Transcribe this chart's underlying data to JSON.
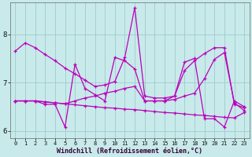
{
  "xlabel": "Windchill (Refroidissement éolien,°C)",
  "xlim": [
    -0.5,
    23.5
  ],
  "ylim": [
    5.85,
    8.65
  ],
  "yticks": [
    6,
    7,
    8
  ],
  "xticks": [
    0,
    1,
    2,
    3,
    4,
    5,
    6,
    7,
    8,
    9,
    10,
    11,
    12,
    13,
    14,
    15,
    16,
    17,
    18,
    19,
    20,
    21,
    22,
    23
  ],
  "background_color": "#c8eaea",
  "grid_color": "#a0caca",
  "line_color": "#bb00bb",
  "figsize": [
    3.2,
    2.0
  ],
  "dpi": 100,
  "series": [
    [
      7.65,
      7.82,
      7.72,
      7.58,
      7.45,
      7.3,
      7.18,
      7.05,
      6.92,
      6.95,
      7.02,
      7.52,
      8.55,
      6.72,
      6.68,
      6.68,
      6.72,
      7.25,
      7.45,
      7.6,
      7.72,
      7.72,
      6.55,
      6.48
    ],
    [
      6.62,
      6.62,
      6.62,
      6.55,
      6.55,
      6.08,
      7.38,
      6.88,
      6.75,
      6.62,
      7.52,
      7.45,
      7.28,
      6.62,
      6.62,
      6.62,
      6.72,
      7.42,
      7.5,
      6.25,
      6.25,
      6.08,
      6.62,
      6.5
    ],
    [
      6.62,
      6.62,
      6.62,
      6.6,
      6.58,
      6.56,
      6.54,
      6.52,
      6.5,
      6.48,
      6.47,
      6.45,
      6.44,
      6.42,
      6.4,
      6.38,
      6.37,
      6.35,
      6.33,
      6.32,
      6.3,
      6.28,
      6.27,
      6.38
    ],
    [
      6.62,
      6.62,
      6.62,
      6.6,
      6.58,
      6.56,
      6.62,
      6.68,
      6.72,
      6.78,
      6.82,
      6.88,
      6.92,
      6.62,
      6.62,
      6.62,
      6.65,
      6.72,
      6.78,
      7.08,
      7.48,
      7.62,
      6.58,
      6.42
    ]
  ]
}
